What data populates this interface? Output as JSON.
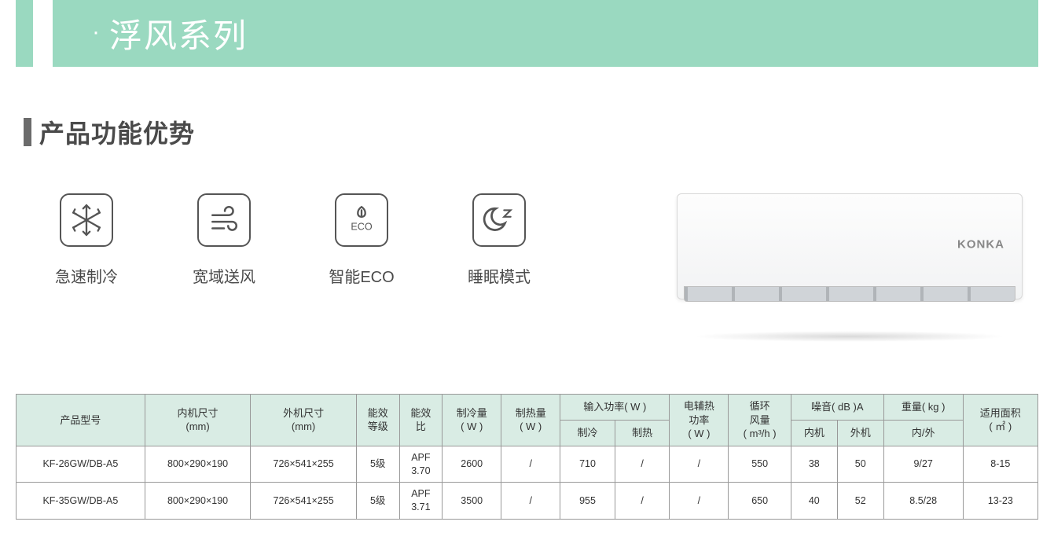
{
  "banner": {
    "title": "浮风系列",
    "bg": "#9ad9c0",
    "text_color": "#ffffff"
  },
  "section": {
    "title": "产品功能优势",
    "bar_color": "#6b6b6b"
  },
  "features": [
    {
      "label": "急速制冷",
      "icon": "snowflake"
    },
    {
      "label": "宽域送风",
      "icon": "wind"
    },
    {
      "label": "智能ECO",
      "icon": "eco"
    },
    {
      "label": "睡眠模式",
      "icon": "sleep"
    }
  ],
  "product": {
    "brand": "KONKA"
  },
  "table": {
    "header_bg": "#d9ece4",
    "border_color": "#999999",
    "columns_top": [
      {
        "label": "产品型号",
        "rowspan": 2
      },
      {
        "label_l1": "内机尺寸",
        "label_l2": "(mm)",
        "rowspan": 2
      },
      {
        "label_l1": "外机尺寸",
        "label_l2": "(mm)",
        "rowspan": 2
      },
      {
        "label_l1": "能效",
        "label_l2": "等级",
        "rowspan": 2
      },
      {
        "label_l1": "能效",
        "label_l2": "比",
        "rowspan": 2
      },
      {
        "label_l1": "制冷量",
        "label_l2": "( W )",
        "rowspan": 2
      },
      {
        "label_l1": "制热量",
        "label_l2": "( W )",
        "rowspan": 2
      },
      {
        "label": "输入功率( W )",
        "colspan": 2
      },
      {
        "label_l1": "电辅热",
        "label_l2": "功率",
        "label_l3": "( W )",
        "rowspan": 2
      },
      {
        "label_l1": "循环",
        "label_l2": "风量",
        "label_l3": "( m³/h )",
        "rowspan": 2
      },
      {
        "label": "噪音( dB )A",
        "colspan": 2
      },
      {
        "label": "重量( kg )",
        "colspan": 1
      },
      {
        "label_l1": "适用面积",
        "label_l2": "( ㎡ )",
        "rowspan": 2
      }
    ],
    "columns_sub": [
      {
        "label": "制冷"
      },
      {
        "label": "制热"
      },
      {
        "label": "内机"
      },
      {
        "label": "外机"
      },
      {
        "label": "内/外"
      }
    ],
    "rows": [
      {
        "model": "KF-26GW/DB-A5",
        "indoor_dim": "800×290×190",
        "outdoor_dim": "726×541×255",
        "eff_grade": "5级",
        "eff_ratio_l1": "APF",
        "eff_ratio_l2": "3.70",
        "cooling": "2600",
        "heating": "/",
        "power_cool": "710",
        "power_heat": "/",
        "aux_heat": "/",
        "airflow": "550",
        "noise_in": "38",
        "noise_out": "50",
        "weight": "9/27",
        "area": "8-15"
      },
      {
        "model": "KF-35GW/DB-A5",
        "indoor_dim": "800×290×190",
        "outdoor_dim": "726×541×255",
        "eff_grade": "5级",
        "eff_ratio_l1": "APF",
        "eff_ratio_l2": "3.71",
        "cooling": "3500",
        "heating": "/",
        "power_cool": "955",
        "power_heat": "/",
        "aux_heat": "/",
        "airflow": "650",
        "noise_in": "40",
        "noise_out": "52",
        "weight": "8.5/28",
        "area": "13-23"
      }
    ]
  }
}
